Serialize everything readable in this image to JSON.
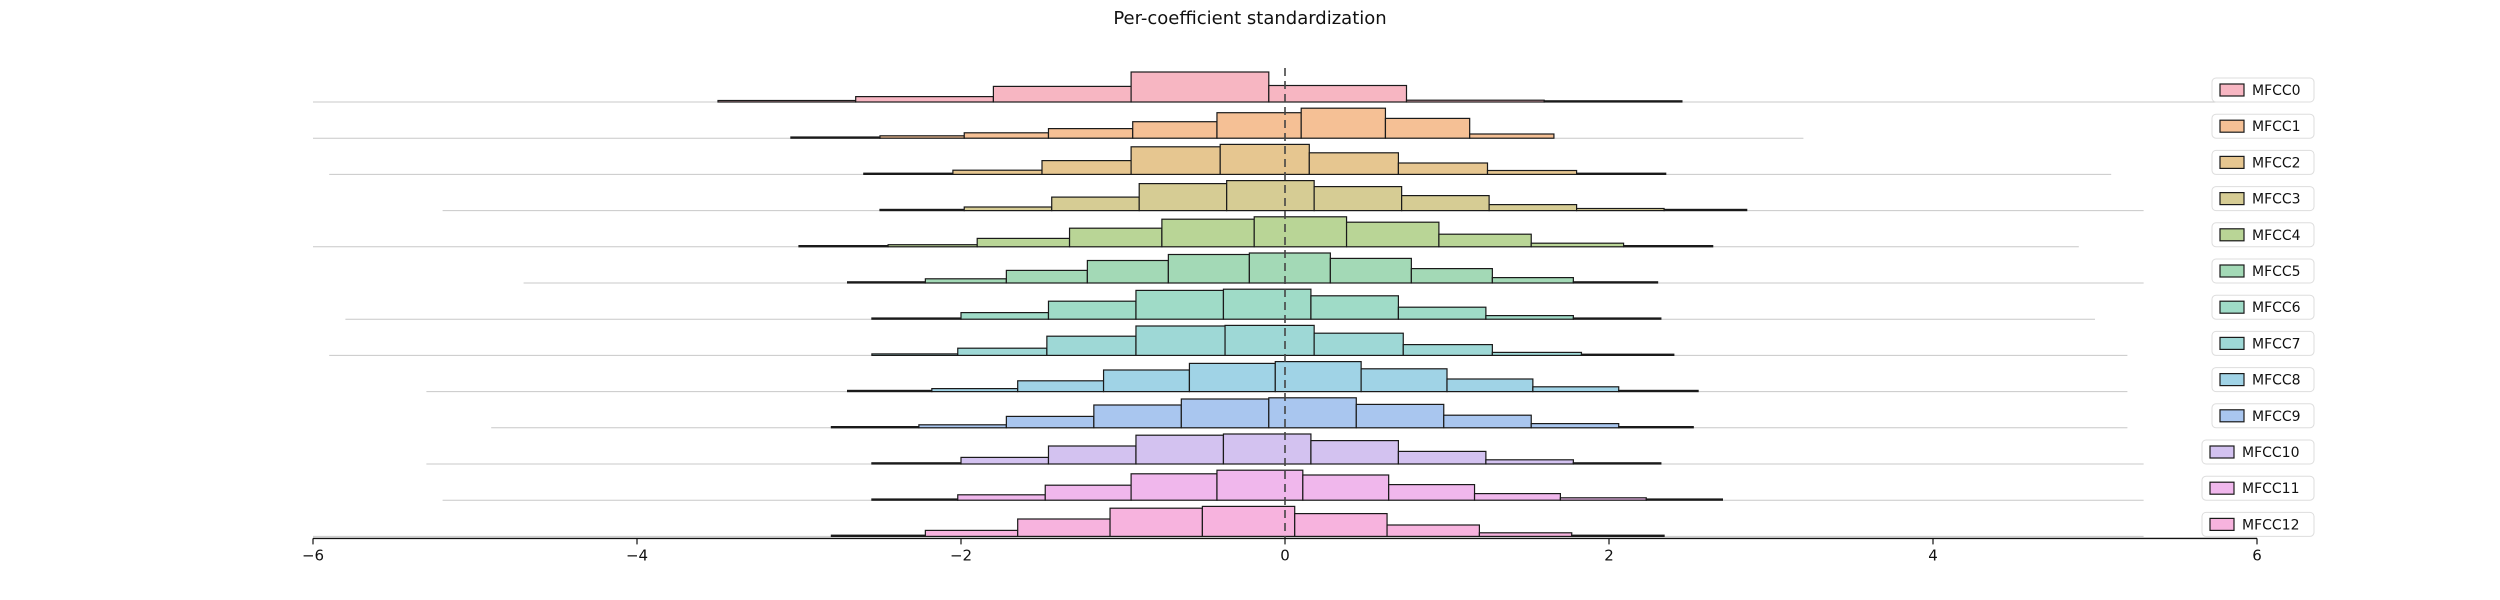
{
  "chart_data": {
    "type": "histogram",
    "title": "Per-coefficient standardization",
    "xlabel": "",
    "ylabel": "",
    "xlim": [
      -6,
      6
    ],
    "xticks": [
      -6,
      -4,
      -2,
      0,
      2,
      4,
      6
    ],
    "tick_labels": [
      "−6",
      "−4",
      "−2",
      "0",
      "2",
      "4",
      "6"
    ],
    "reference_line": {
      "x": 0,
      "style": "dashed"
    },
    "legend_position": "right",
    "layout": "stacked ridgeline (one row per coefficient)",
    "series": [
      {
        "name": "MFCC0",
        "color": "#f7b6c2",
        "range": [
          -6.0,
          5.9
        ],
        "edges": [
          -3.5,
          -2.65,
          -1.8,
          -0.95,
          -0.1,
          0.75,
          1.6,
          2.45
        ],
        "heights": [
          0.05,
          0.18,
          0.52,
          1.0,
          0.55,
          0.06,
          0.0
        ]
      },
      {
        "name": "MFCC1",
        "color": "#f5c095",
        "range": [
          -6.0,
          3.2
        ],
        "edges": [
          -3.05,
          -2.5,
          -1.98,
          -1.46,
          -0.94,
          -0.42,
          0.1,
          0.62,
          1.14,
          1.66
        ],
        "heights": [
          0.04,
          0.08,
          0.18,
          0.32,
          0.55,
          0.85,
          1.0,
          0.66,
          0.14
        ]
      },
      {
        "name": "MFCC2",
        "color": "#e6c690",
        "range": [
          -5.9,
          5.1
        ],
        "edges": [
          -2.6,
          -2.05,
          -1.5,
          -0.95,
          -0.4,
          0.15,
          0.7,
          1.25,
          1.8,
          2.35
        ],
        "heights": [
          0.04,
          0.14,
          0.46,
          0.92,
          1.0,
          0.72,
          0.38,
          0.13,
          0.03
        ]
      },
      {
        "name": "MFCC3",
        "color": "#d6cc94",
        "range": [
          -5.2,
          5.3
        ],
        "edges": [
          -2.5,
          -1.98,
          -1.44,
          -0.9,
          -0.36,
          0.18,
          0.72,
          1.26,
          1.8,
          2.34,
          2.85
        ],
        "heights": [
          0.03,
          0.12,
          0.45,
          0.9,
          1.0,
          0.8,
          0.5,
          0.2,
          0.07,
          0.02
        ]
      },
      {
        "name": "MFCC4",
        "color": "#b9d596",
        "range": [
          -6.0,
          4.9
        ],
        "edges": [
          -3.0,
          -2.45,
          -1.9,
          -1.33,
          -0.76,
          -0.19,
          0.38,
          0.95,
          1.52,
          2.09,
          2.64
        ],
        "heights": [
          0.02,
          0.07,
          0.28,
          0.62,
          0.92,
          1.0,
          0.82,
          0.42,
          0.12,
          0.03
        ]
      },
      {
        "name": "MFCC5",
        "color": "#a3d9b6",
        "range": [
          -4.7,
          5.3
        ],
        "edges": [
          -2.7,
          -2.22,
          -1.72,
          -1.22,
          -0.72,
          -0.22,
          0.28,
          0.78,
          1.28,
          1.78,
          2.3
        ],
        "heights": [
          0.03,
          0.14,
          0.42,
          0.75,
          0.95,
          1.0,
          0.82,
          0.48,
          0.18,
          0.04
        ]
      },
      {
        "name": "MFCC6",
        "color": "#9fdbc7",
        "range": [
          -5.8,
          5.0
        ],
        "edges": [
          -2.55,
          -2.0,
          -1.46,
          -0.92,
          -0.38,
          0.16,
          0.7,
          1.24,
          1.78,
          2.32
        ],
        "heights": [
          0.04,
          0.22,
          0.6,
          0.96,
          1.0,
          0.78,
          0.4,
          0.12,
          0.03
        ]
      },
      {
        "name": "MFCC7",
        "color": "#9ed8d6",
        "range": [
          -5.9,
          5.2
        ],
        "edges": [
          -2.55,
          -2.02,
          -1.47,
          -0.92,
          -0.37,
          0.18,
          0.73,
          1.28,
          1.83,
          2.4
        ],
        "heights": [
          0.05,
          0.24,
          0.64,
          0.98,
          1.0,
          0.74,
          0.36,
          0.1,
          0.03
        ]
      },
      {
        "name": "MFCC8",
        "color": "#a0d3e6",
        "range": [
          -5.3,
          5.2
        ],
        "edges": [
          -2.7,
          -2.18,
          -1.65,
          -1.12,
          -0.59,
          -0.06,
          0.47,
          1.0,
          1.53,
          2.06,
          2.55
        ],
        "heights": [
          0.03,
          0.1,
          0.36,
          0.72,
          0.94,
          1.0,
          0.76,
          0.42,
          0.16,
          0.04
        ]
      },
      {
        "name": "MFCC9",
        "color": "#a9c6ef",
        "range": [
          -4.9,
          5.2
        ],
        "edges": [
          -2.8,
          -2.26,
          -1.72,
          -1.18,
          -0.64,
          -0.1,
          0.44,
          0.98,
          1.52,
          2.06,
          2.52
        ],
        "heights": [
          0.03,
          0.1,
          0.38,
          0.76,
          0.96,
          1.0,
          0.78,
          0.42,
          0.14,
          0.04
        ]
      },
      {
        "name": "MFCC10",
        "color": "#d3c2f0",
        "range": [
          -5.3,
          5.3
        ],
        "edges": [
          -2.55,
          -2.0,
          -1.46,
          -0.92,
          -0.38,
          0.16,
          0.7,
          1.24,
          1.78,
          2.32
        ],
        "heights": [
          0.04,
          0.22,
          0.6,
          0.96,
          1.0,
          0.78,
          0.42,
          0.14,
          0.03
        ]
      },
      {
        "name": "MFCC11",
        "color": "#f0b7ec",
        "range": [
          -5.2,
          5.3
        ],
        "edges": [
          -2.55,
          -2.02,
          -1.48,
          -0.95,
          -0.42,
          0.11,
          0.64,
          1.17,
          1.7,
          2.23,
          2.7
        ],
        "heights": [
          0.04,
          0.18,
          0.5,
          0.88,
          1.0,
          0.84,
          0.52,
          0.22,
          0.08,
          0.02
        ]
      },
      {
        "name": "MFCC12",
        "color": "#f7b3de",
        "range": [
          -6.0,
          5.3
        ],
        "edges": [
          -2.8,
          -2.22,
          -1.65,
          -1.08,
          -0.51,
          0.06,
          0.63,
          1.2,
          1.77,
          2.34
        ],
        "heights": [
          0.04,
          0.2,
          0.58,
          0.94,
          1.0,
          0.76,
          0.38,
          0.12,
          0.03
        ]
      }
    ]
  }
}
